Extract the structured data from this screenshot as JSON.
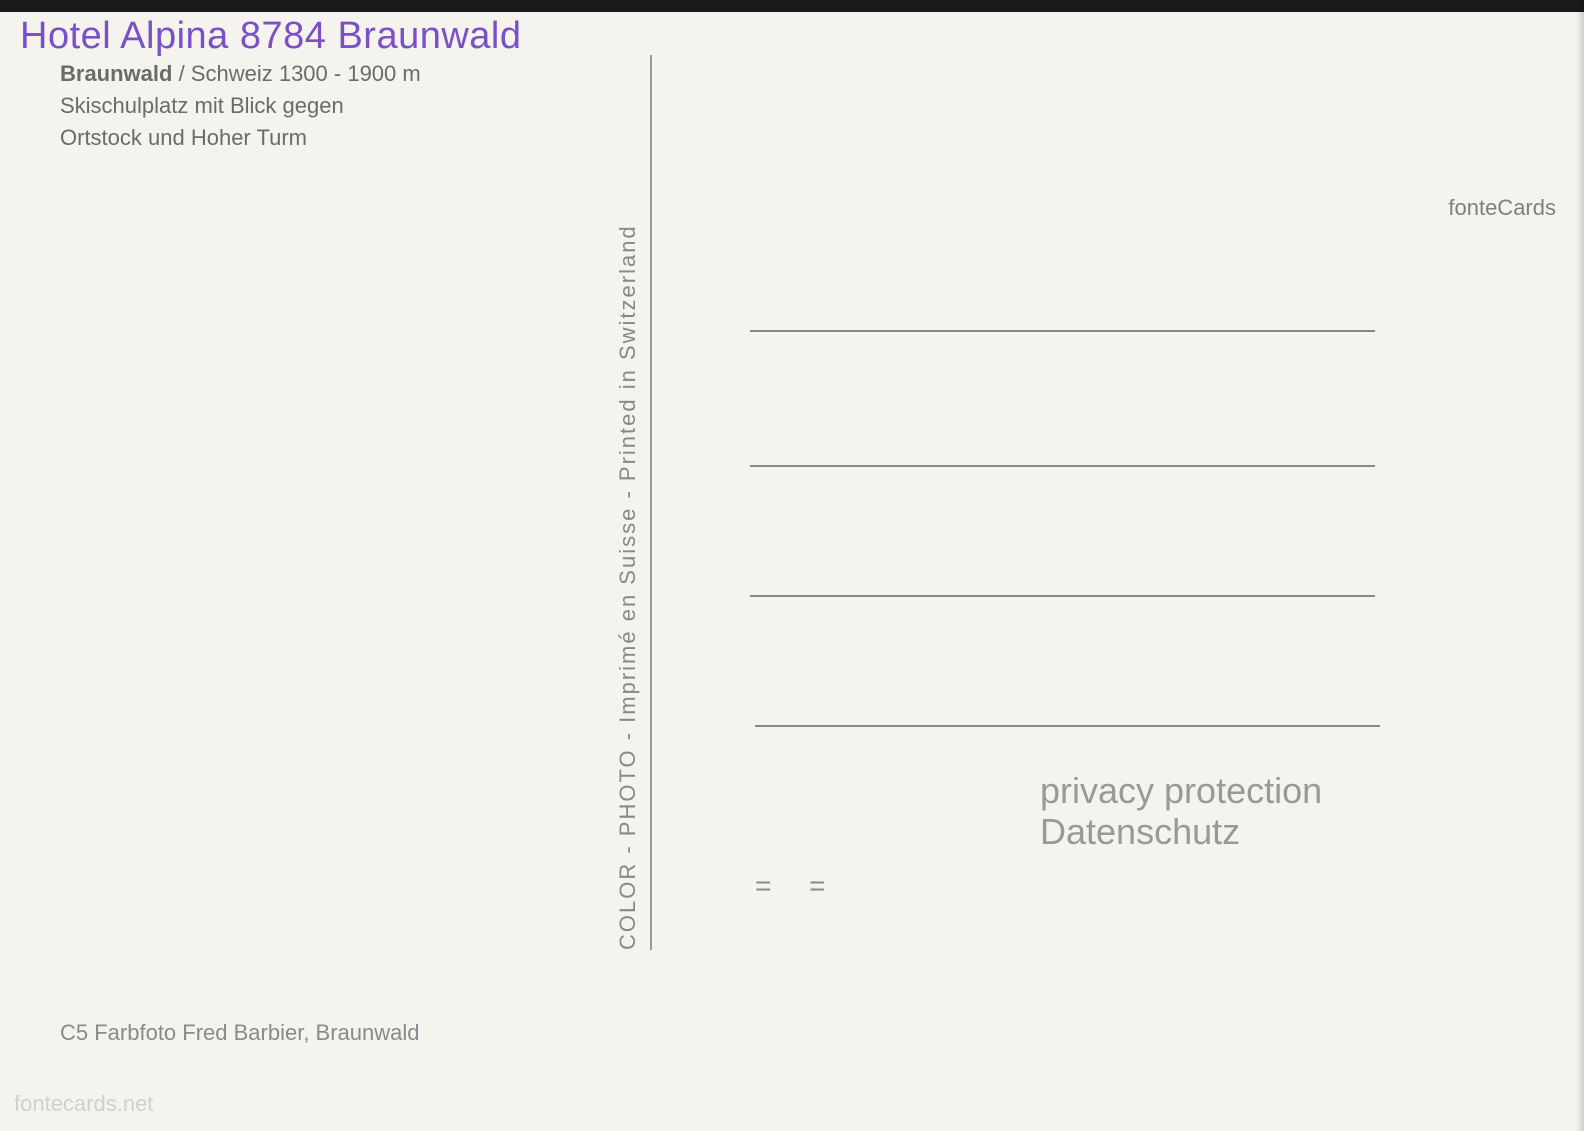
{
  "stamp": {
    "text": "Hotel Alpina 8784 Braunwald"
  },
  "locationBlock": {
    "bold": "Braunwald",
    "after": " / Schweiz   1300 - 1900 m",
    "line2": "Skischulplatz mit Blick gegen",
    "line3": "Ortstock und Hoher Turm"
  },
  "verticalPrint": "COLOR - PHOTO - Imprimé en Suisse - Printed in Switzerland",
  "smallMarks": "= =",
  "privacy": {
    "line1": "privacy protection",
    "line2": "Datenschutz"
  },
  "credit": "C5 Farbfoto Fred Barbier, Braunwald",
  "watermarks": {
    "fonteCards": "fonteCards",
    "domain": "fontecards.net"
  },
  "styling": {
    "bg_color": "#f5f3ee",
    "stamp_color": "#7b4fc9",
    "text_color": "#6b6b6b",
    "line_color": "#888888",
    "divider_color": "#9a9a9a",
    "watermark_color": "#808080",
    "domain_color": "#d0d0d0",
    "stamp_fontsize": 38,
    "body_fontsize": 22,
    "privacy_fontsize": 36
  }
}
